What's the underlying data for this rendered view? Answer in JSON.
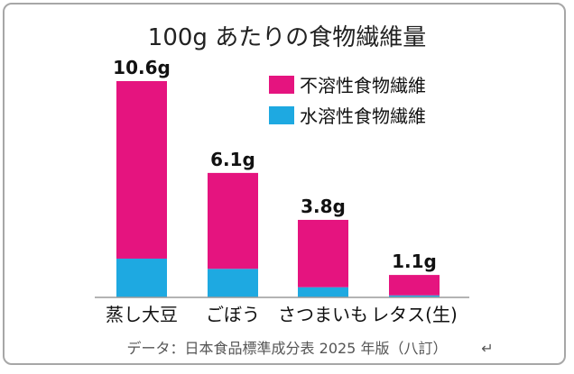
{
  "chart_data": {
    "type": "bar",
    "stacked": true,
    "title": "100g あたりの食物繊維量",
    "categories": [
      "蒸し大豆",
      "ごぼう",
      "さつまいも",
      "レタス(生)"
    ],
    "totals": [
      "10.6g",
      "6.1g",
      "3.8g",
      "1.1g"
    ],
    "series": [
      {
        "name": "水溶性食物繊維",
        "color": "#1ea9e1",
        "values": [
          1.9,
          1.4,
          0.5,
          0.1
        ]
      },
      {
        "name": "不溶性食物繊維",
        "color": "#e5147f",
        "values": [
          8.7,
          4.7,
          3.3,
          1.0
        ]
      }
    ],
    "legend_position": "top-right",
    "grid": false,
    "ylim": [
      0,
      10.6
    ]
  },
  "source_note": "データ：日本食品標準成分表 2025 年版（八訂）",
  "return_mark": "↵"
}
